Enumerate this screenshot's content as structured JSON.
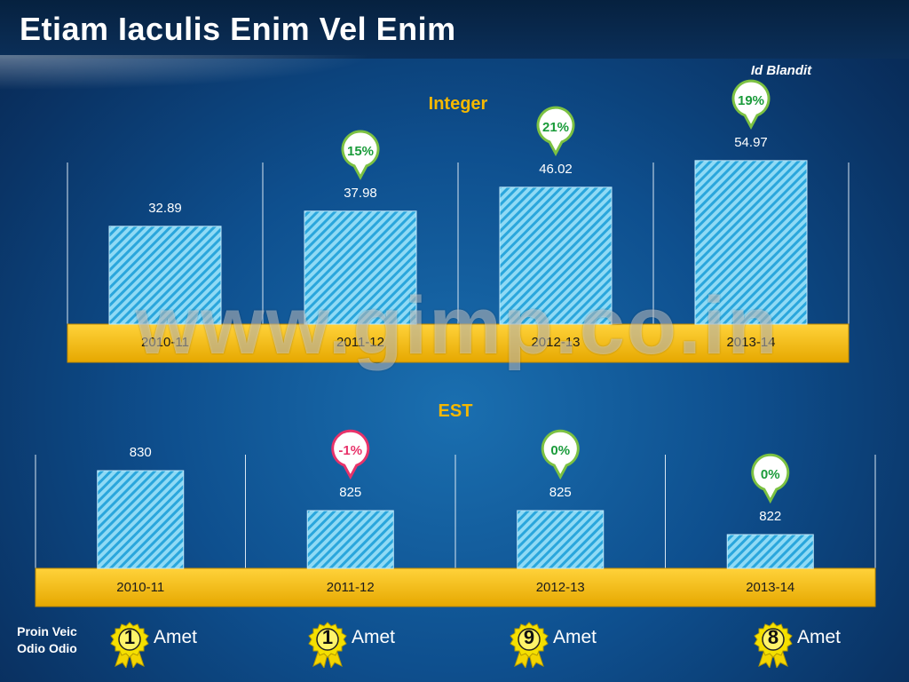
{
  "title": "Etiam Iaculis Enim Vel Enim",
  "corner_note": "Id Blandit",
  "watermark": "www.gimp.co.in",
  "colors": {
    "bar_fill": "#7fd3f2",
    "bar_stripe": "#2aa6dc",
    "base_band": "#f5b800",
    "title_accent": "#f5b800",
    "positive_bubble": "#7cc142",
    "negative_bubble": "#e8336a"
  },
  "chart_data": [
    {
      "type": "bar",
      "title": "Integer",
      "categories": [
        "2010-11",
        "2011-12",
        "2012-13",
        "2013-14"
      ],
      "values": [
        32.89,
        37.98,
        46.02,
        54.97
      ],
      "value_labels": [
        "32.89",
        "37.98",
        "46.02",
        "54.97"
      ],
      "growth": [
        null,
        "15%",
        "21%",
        "19%"
      ],
      "growth_sign": [
        null,
        "positive",
        "positive",
        "positive"
      ],
      "ylim": [
        0,
        60
      ]
    },
    {
      "type": "bar",
      "title": "EST",
      "categories": [
        "2010-11",
        "2011-12",
        "2012-13",
        "2013-14"
      ],
      "values": [
        830,
        825,
        825,
        822
      ],
      "value_labels": [
        "830",
        "825",
        "825",
        "822"
      ],
      "growth": [
        null,
        "-1%",
        "0%",
        "0%"
      ],
      "growth_sign": [
        null,
        "negative",
        "positive",
        "positive"
      ]
    }
  ],
  "footer": {
    "label": "Proin Veic Odio Odio",
    "awards": [
      {
        "rank": "1",
        "text": "Amet"
      },
      {
        "rank": "1",
        "text": "Amet"
      },
      {
        "rank": "9",
        "text": "Amet"
      },
      {
        "rank": "8",
        "text": "Amet"
      }
    ]
  }
}
